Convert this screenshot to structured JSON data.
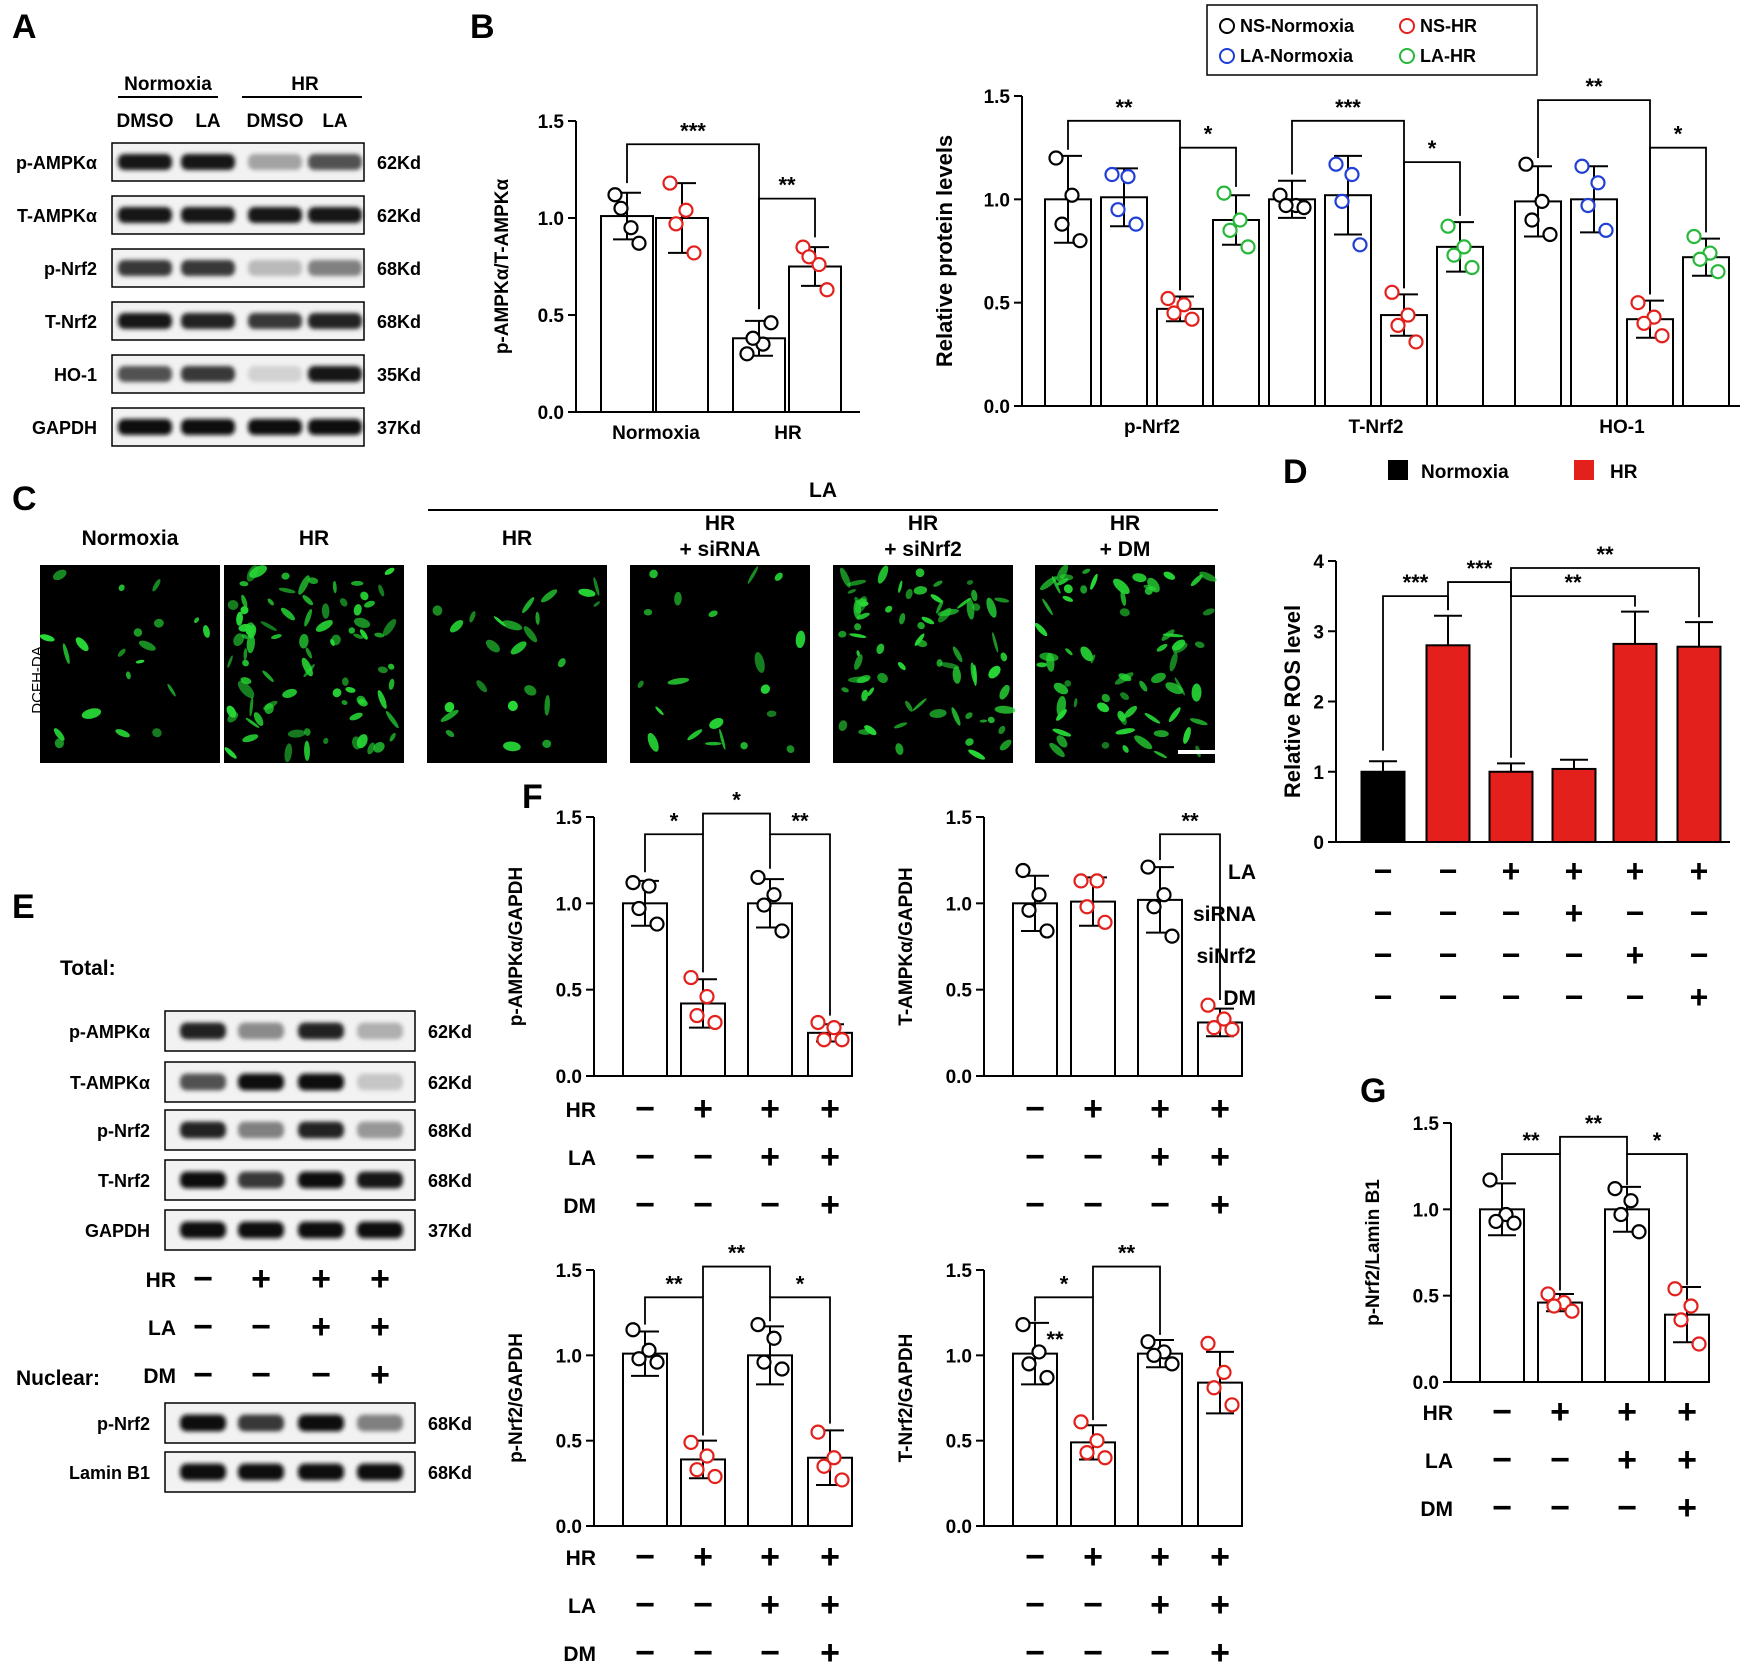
{
  "colors": {
    "black": "#000000",
    "red": "#e3201b",
    "blue": "#1f3fd6",
    "green": "#27b83a",
    "fluor": "#27d936",
    "white": "#ffffff"
  },
  "labels": {
    "A": "A",
    "B": "B",
    "C": "C",
    "D": "D",
    "E": "E",
    "F": "F",
    "G": "G"
  },
  "panelA": {
    "groups": [
      "Normoxia",
      "HR"
    ],
    "lanes": [
      "DMSO",
      "LA",
      "DMSO",
      "LA"
    ],
    "blots": [
      {
        "name": "p-AMPKα",
        "size": "62Kd",
        "levels": [
          0.95,
          0.95,
          0.35,
          0.7
        ]
      },
      {
        "name": "T-AMPKα",
        "size": "62Kd",
        "levels": [
          0.95,
          0.95,
          0.95,
          0.95
        ]
      },
      {
        "name": "p-Nrf2",
        "size": "68Kd",
        "levels": [
          0.8,
          0.8,
          0.25,
          0.5
        ]
      },
      {
        "name": "T-Nrf2",
        "size": "68Kd",
        "levels": [
          0.95,
          0.9,
          0.8,
          0.9
        ]
      },
      {
        "name": "HO-1",
        "size": "35Kd",
        "levels": [
          0.7,
          0.8,
          0.15,
          0.95
        ]
      },
      {
        "name": "GAPDH",
        "size": "37Kd",
        "levels": [
          1,
          1,
          1,
          1
        ]
      }
    ]
  },
  "legendB": [
    "NS-Normoxia",
    "NS-HR",
    "LA-Normoxia",
    "LA-HR"
  ],
  "panelC": {
    "la_header": "LA",
    "stain": "DCFH-DA",
    "columns": [
      {
        "l1": "Normoxia",
        "l2": "",
        "density": 0.2
      },
      {
        "l1": "HR",
        "l2": "",
        "density": 1.0
      },
      {
        "l1": "HR",
        "l2": "",
        "density": 0.25
      },
      {
        "l1": "HR",
        "l2": "+ siRNA",
        "density": 0.2
      },
      {
        "l1": "HR",
        "l2": "+ siNrf2",
        "density": 0.85
      },
      {
        "l1": "HR",
        "l2": "+ DM",
        "density": 0.8
      }
    ]
  },
  "legendD": [
    "Normoxia",
    "HR"
  ],
  "panelE": {
    "total_label": "Total:",
    "nuclear_label": "Nuclear:",
    "total_blots": [
      {
        "name": "p-AMPKα",
        "size": "62Kd",
        "levels": [
          0.9,
          0.45,
          0.9,
          0.3
        ]
      },
      {
        "name": "T-AMPKα",
        "size": "62Kd",
        "levels": [
          0.7,
          1,
          1,
          0.2
        ]
      },
      {
        "name": "p-Nrf2",
        "size": "68Kd",
        "levels": [
          0.9,
          0.5,
          0.9,
          0.4
        ]
      },
      {
        "name": "T-Nrf2",
        "size": "68Kd",
        "levels": [
          1,
          0.8,
          1,
          0.95
        ]
      },
      {
        "name": "GAPDH",
        "size": "37Kd",
        "levels": [
          1,
          1,
          1,
          1
        ]
      }
    ],
    "conditions": [
      {
        "name": "HR",
        "signs": [
          "−",
          "+",
          "+",
          "+"
        ]
      },
      {
        "name": "LA",
        "signs": [
          "−",
          "−",
          "+",
          "+"
        ]
      },
      {
        "name": "DM",
        "signs": [
          "−",
          "−",
          "−",
          "+"
        ]
      }
    ],
    "nuclear_blots": [
      {
        "name": "p-Nrf2",
        "size": "68Kd",
        "levels": [
          1,
          0.8,
          1,
          0.5
        ]
      },
      {
        "name": "Lamin B1",
        "size": "68Kd",
        "levels": [
          1,
          1,
          1,
          1
        ]
      }
    ]
  },
  "chart_data": [
    {
      "panel": "B-left",
      "type": "bar",
      "ylabel": "p-AMPKα/T-AMPKα",
      "ylim": [
        0,
        1.5
      ],
      "yticks": [
        "0.0",
        "0.5",
        "1.0",
        "1.5"
      ],
      "categories": [
        "Normoxia",
        "HR"
      ],
      "series": [
        {
          "name": "NS",
          "values": [
            1.01,
            0.38
          ],
          "errors": [
            0.12,
            0.09
          ],
          "points": [
            [
              1.12,
              0.95,
              1.05,
              0.87
            ],
            [
              0.3,
              0.35,
              0.38,
              0.46
            ]
          ]
        },
        {
          "name": "LA",
          "values": [
            1.0,
            0.75
          ],
          "errors": [
            0.18,
            0.1
          ],
          "points": [
            [
              1.18,
              1.04,
              0.97,
              0.82
            ],
            [
              0.85,
              0.76,
              0.8,
              0.63
            ]
          ]
        }
      ],
      "significance": [
        {
          "text": "***"
        },
        {
          "text": "**"
        }
      ]
    },
    {
      "panel": "B-right",
      "type": "bar",
      "ylabel": "Relative protein levels",
      "ylim": [
        0,
        1.5
      ],
      "yticks": [
        "0.0",
        "0.5",
        "1.0",
        "1.5"
      ],
      "categories": [
        "p-Nrf2",
        "T-Nrf2",
        "HO-1"
      ],
      "series": [
        {
          "name": "NS-Normoxia",
          "values": [
            1.0,
            1.0,
            0.99
          ],
          "errors": [
            0.21,
            0.09,
            0.17
          ],
          "points": [
            [
              1.2,
              1.02,
              0.88,
              0.8
            ],
            [
              1.02,
              0.97,
              0.97,
              0.96
            ],
            [
              1.17,
              0.99,
              0.9,
              0.83
            ]
          ]
        },
        {
          "name": "LA-Normoxia",
          "values": [
            1.01,
            1.02,
            1.0
          ],
          "errors": [
            0.14,
            0.19,
            0.16
          ],
          "points": [
            [
              1.12,
              1.11,
              0.95,
              0.88
            ],
            [
              1.17,
              1.12,
              0.99,
              0.78
            ],
            [
              1.16,
              1.08,
              0.97,
              0.85
            ]
          ]
        },
        {
          "name": "NS-HR",
          "values": [
            0.47,
            0.44,
            0.42
          ],
          "errors": [
            0.06,
            0.1,
            0.09
          ],
          "points": [
            [
              0.52,
              0.49,
              0.45,
              0.42
            ],
            [
              0.55,
              0.44,
              0.39,
              0.31
            ],
            [
              0.5,
              0.43,
              0.4,
              0.34
            ]
          ]
        },
        {
          "name": "LA-HR",
          "values": [
            0.9,
            0.77,
            0.72
          ],
          "errors": [
            0.12,
            0.12,
            0.09
          ],
          "points": [
            [
              1.03,
              0.9,
              0.85,
              0.77
            ],
            [
              0.87,
              0.77,
              0.73,
              0.67
            ],
            [
              0.82,
              0.74,
              0.71,
              0.65
            ]
          ]
        }
      ],
      "significance": [
        {
          "text": "**"
        },
        {
          "text": "*"
        },
        {
          "text": "***"
        },
        {
          "text": "*"
        },
        {
          "text": "**"
        },
        {
          "text": "*"
        }
      ]
    },
    {
      "panel": "D",
      "type": "bar",
      "ylabel": "Relative ROS level",
      "ylim": [
        0,
        4
      ],
      "yticks": [
        "0",
        "1",
        "2",
        "3",
        "4"
      ],
      "values": [
        1.0,
        2.8,
        1.0,
        1.04,
        2.82,
        2.78
      ],
      "errors": [
        0.15,
        0.42,
        0.12,
        0.13,
        0.46,
        0.35
      ],
      "colors": [
        "black",
        "red",
        "red",
        "red",
        "red",
        "red"
      ],
      "conditions": [
        {
          "name": "LA",
          "signs": [
            "−",
            "−",
            "+",
            "+",
            "+",
            "+"
          ]
        },
        {
          "name": "siRNA",
          "signs": [
            "−",
            "−",
            "−",
            "+",
            "−",
            "−"
          ]
        },
        {
          "name": "siNrf2",
          "signs": [
            "−",
            "−",
            "−",
            "−",
            "+",
            "−"
          ]
        },
        {
          "name": "DM",
          "signs": [
            "−",
            "−",
            "−",
            "−",
            "−",
            "+"
          ]
        }
      ],
      "significance": [
        {
          "text": "***"
        },
        {
          "text": "***"
        },
        {
          "text": "**"
        },
        {
          "text": "**"
        }
      ]
    },
    {
      "panel": "F1",
      "type": "bar",
      "ylabel": "p-AMPKα/GAPDH",
      "ylim": [
        0,
        1.5
      ],
      "yticks": [
        "0.0",
        "0.5",
        "1.0",
        "1.5"
      ],
      "values": [
        1.0,
        0.42,
        1.0,
        0.25
      ],
      "errors": [
        0.13,
        0.14,
        0.14,
        0.05
      ],
      "points": [
        [
          1.12,
          1.1,
          0.97,
          0.88
        ],
        [
          0.57,
          0.46,
          0.35,
          0.31
        ],
        [
          1.15,
          1.05,
          0.99,
          0.84
        ],
        [
          0.31,
          0.28,
          0.21,
          0.21
        ]
      ],
      "significance": [
        {
          "text": "*"
        },
        {
          "text": "*"
        },
        {
          "text": "**"
        }
      ]
    },
    {
      "panel": "F2",
      "type": "bar",
      "ylabel": "T-AMPKα/GAPDH",
      "ylim": [
        0,
        1.5
      ],
      "yticks": [
        "0.0",
        "0.5",
        "1.0",
        "1.5"
      ],
      "values": [
        1.0,
        1.01,
        1.02,
        0.31
      ],
      "errors": [
        0.16,
        0.14,
        0.19,
        0.08
      ],
      "points": [
        [
          1.19,
          1.05,
          0.96,
          0.84
        ],
        [
          1.13,
          1.13,
          0.98,
          0.89
        ],
        [
          1.21,
          1.05,
          0.98,
          0.81
        ],
        [
          0.41,
          0.33,
          0.28,
          0.27
        ]
      ],
      "significance": [
        {
          "text": "**"
        }
      ]
    },
    {
      "panel": "F3",
      "type": "bar",
      "ylabel": "p-Nrf2/GAPDH",
      "ylim": [
        0,
        1.5
      ],
      "yticks": [
        "0.0",
        "0.5",
        "1.0",
        "1.5"
      ],
      "values": [
        1.01,
        0.39,
        1.0,
        0.4
      ],
      "errors": [
        0.13,
        0.11,
        0.17,
        0.16
      ],
      "points": [
        [
          1.15,
          1.03,
          0.98,
          0.96
        ],
        [
          0.49,
          0.41,
          0.33,
          0.29
        ],
        [
          1.18,
          1.1,
          0.96,
          0.92
        ],
        [
          0.55,
          0.4,
          0.35,
          0.27
        ]
      ],
      "significance": [
        {
          "text": "**"
        },
        {
          "text": "**"
        },
        {
          "text": "*"
        }
      ]
    },
    {
      "panel": "F4",
      "type": "bar",
      "ylabel": "T-Nrf2/GAPDH",
      "ylim": [
        0,
        1.5
      ],
      "yticks": [
        "0.0",
        "0.5",
        "1.0",
        "1.5"
      ],
      "values": [
        1.01,
        0.49,
        1.01,
        0.84
      ],
      "errors": [
        0.18,
        0.1,
        0.08,
        0.18
      ],
      "points": [
        [
          1.18,
          1.02,
          0.95,
          0.87
        ],
        [
          0.61,
          0.5,
          0.43,
          0.4
        ],
        [
          1.08,
          1.02,
          1.0,
          0.95
        ],
        [
          1.07,
          0.9,
          0.81,
          0.71
        ]
      ],
      "significance": [
        {
          "text": "*"
        },
        {
          "text": "**"
        },
        {
          "text": "**"
        }
      ]
    },
    {
      "panel": "G",
      "type": "bar",
      "ylabel": "p-Nrf2/Lamin B1",
      "ylim": [
        0,
        1.5
      ],
      "yticks": [
        "0.0",
        "0.5",
        "1.0",
        "1.5"
      ],
      "values": [
        1.0,
        0.46,
        1.0,
        0.39
      ],
      "errors": [
        0.15,
        0.05,
        0.13,
        0.16
      ],
      "points": [
        [
          1.17,
          0.97,
          0.93,
          0.92
        ],
        [
          0.51,
          0.46,
          0.44,
          0.41
        ],
        [
          1.12,
          1.05,
          0.97,
          0.87
        ],
        [
          0.54,
          0.44,
          0.36,
          0.22
        ]
      ],
      "significance": [
        {
          "text": "**"
        },
        {
          "text": "**"
        },
        {
          "text": "*"
        }
      ]
    },
    {
      "panel": "F-G-conditions",
      "type": "table",
      "rows": [
        {
          "name": "HR",
          "signs": [
            "−",
            "+",
            "+",
            "+"
          ]
        },
        {
          "name": "LA",
          "signs": [
            "−",
            "−",
            "+",
            "+"
          ]
        },
        {
          "name": "DM",
          "signs": [
            "−",
            "−",
            "−",
            "+"
          ]
        }
      ]
    }
  ]
}
